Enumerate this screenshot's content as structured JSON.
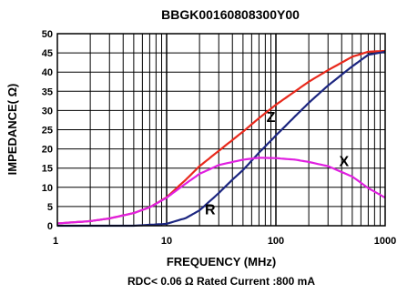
{
  "chart_data": {
    "type": "line",
    "title": "BBGK00160808300Y00",
    "xlabel": "FREQUENCY (MHz)",
    "ylabel": "IMPEDANCE( Ω)",
    "footnote": "RDC< 0.06 Ω Rated Current :800 mA",
    "x_scale": "log",
    "xlim": [
      1,
      1000
    ],
    "ylim": [
      0,
      50
    ],
    "x_ticks": [
      1,
      10,
      100,
      1000
    ],
    "x_tick_labels": [
      "1",
      "10",
      "100",
      "1000"
    ],
    "y_ticks": [
      0,
      5,
      10,
      15,
      20,
      25,
      30,
      35,
      40,
      45,
      50
    ],
    "y_tick_labels": [
      "0",
      "5",
      "10",
      "15",
      "20",
      "25",
      "30",
      "35",
      "40",
      "45",
      "50"
    ],
    "grid": true,
    "series": [
      {
        "name": "Z",
        "color": "#e8291c",
        "x": [
          1,
          2,
          3,
          5,
          7,
          10,
          15,
          20,
          30,
          50,
          70,
          100,
          150,
          200,
          300,
          500,
          700,
          1000
        ],
        "y": [
          0.6,
          1.2,
          1.9,
          3.3,
          4.8,
          7.4,
          12,
          15.5,
          19.5,
          24.5,
          28,
          31.5,
          35,
          37.5,
          40.5,
          44,
          45.3,
          45.5
        ]
      },
      {
        "name": "R",
        "color": "#1c2680",
        "x": [
          1,
          5,
          10,
          15,
          20,
          30,
          40,
          50,
          70,
          100,
          150,
          200,
          300,
          500,
          700,
          1000
        ],
        "y": [
          0,
          0,
          0.5,
          2,
          4,
          8.5,
          12,
          14.5,
          19,
          23.5,
          28.5,
          32,
          36.5,
          41.5,
          44.5,
          45.3
        ]
      },
      {
        "name": "X",
        "color": "#e020e0",
        "x": [
          1,
          2,
          3,
          5,
          7,
          10,
          15,
          20,
          30,
          50,
          70,
          100,
          150,
          200,
          300,
          500,
          700,
          1000
        ],
        "y": [
          0.6,
          1.2,
          1.9,
          3.3,
          4.8,
          7.3,
          11,
          13.5,
          15.8,
          17.2,
          17.7,
          17.6,
          17.2,
          16.6,
          15.5,
          12.8,
          9.8,
          7.3
        ]
      }
    ],
    "annotations": [
      {
        "text": "Z",
        "x": 90,
        "y": 27
      },
      {
        "text": "X",
        "x": 420,
        "y": 15.5
      },
      {
        "text": "R",
        "x": 25,
        "y": 3
      }
    ]
  }
}
